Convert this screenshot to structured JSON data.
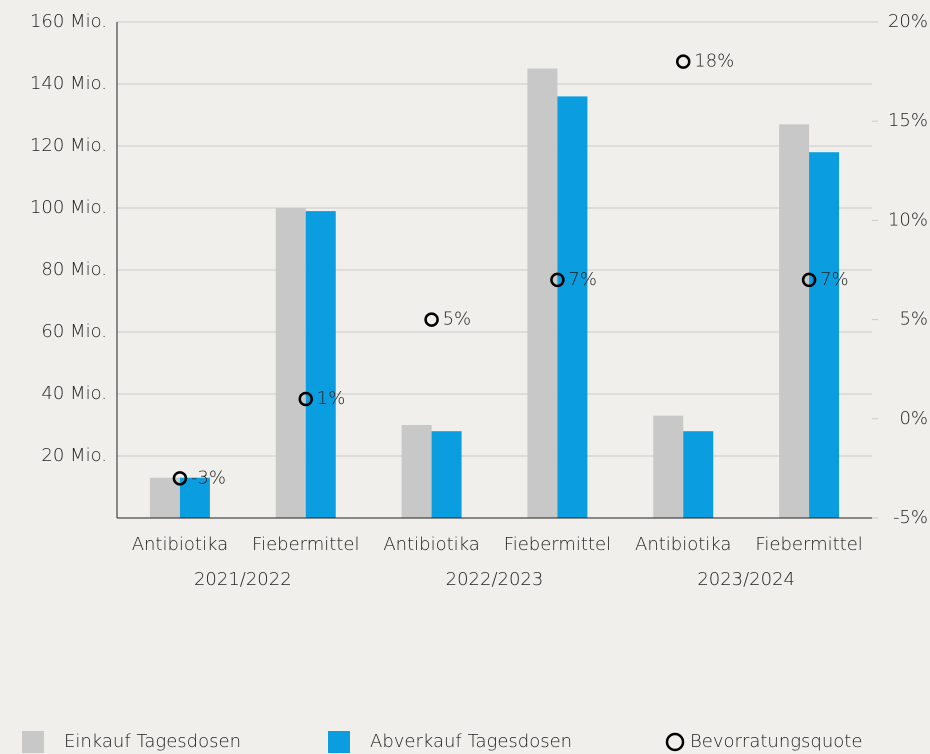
{
  "chart_data": {
    "type": "bar",
    "categories": [
      "Antibiotika",
      "Fiebermittel",
      "Antibiotika",
      "Fiebermittel",
      "Antibiotika",
      "Fiebermittel"
    ],
    "groups": [
      "2021/2022",
      "2022/2023",
      "2023/2024"
    ],
    "series": [
      {
        "name": "Einkauf Tagesdosen",
        "color": "#c8c8c8",
        "values": [
          13,
          100,
          30,
          145,
          33,
          127
        ]
      },
      {
        "name": "Abverkauf Tagesdosen",
        "color": "#0a9ee0",
        "values": [
          13,
          99,
          28,
          136,
          28,
          118
        ]
      },
      {
        "name": "Bevorratungsquote",
        "color": "#000000",
        "axis": "y2",
        "values": [
          -3,
          1,
          5,
          7,
          18,
          7
        ],
        "value_labels": [
          "-3%",
          "1%",
          "5%",
          "7%",
          "18%",
          "7%"
        ]
      }
    ],
    "ylim": [
      0,
      160
    ],
    "yticks": [
      {
        "value": 20,
        "label": "20 Mio."
      },
      {
        "value": 40,
        "label": "40 Mio."
      },
      {
        "value": 60,
        "label": "60 Mio."
      },
      {
        "value": 80,
        "label": "80 Mio."
      },
      {
        "value": 100,
        "label": "100 Mio."
      },
      {
        "value": 120,
        "label": "120 Mio."
      },
      {
        "value": 140,
        "label": "140 Mio."
      },
      {
        "value": 160,
        "label": "160 Mio."
      }
    ],
    "y2lim": [
      -5,
      20
    ],
    "y2ticks": [
      {
        "value": -5,
        "label": "-5%"
      },
      {
        "value": 0,
        "label": "0%"
      },
      {
        "value": 5,
        "label": "5%"
      },
      {
        "value": 10,
        "label": "10%"
      },
      {
        "value": 15,
        "label": "15%"
      },
      {
        "value": 20,
        "label": "20%"
      }
    ],
    "grid": true
  }
}
